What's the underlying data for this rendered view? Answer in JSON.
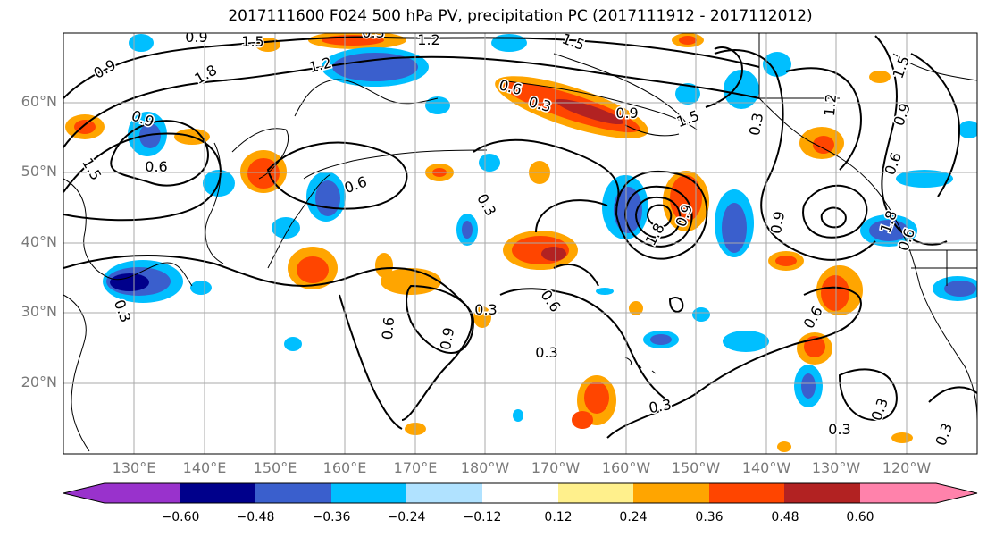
{
  "title": "2017111600 F024 500 hPa PV, precipitation PC (2017111912 - 2017112012)",
  "lat_labels": [
    "60°N",
    "50°N",
    "40°N",
    "30°N",
    "20°N"
  ],
  "lon_labels": [
    "130°E",
    "140°E",
    "150°E",
    "160°E",
    "170°E",
    "180°W",
    "170°W",
    "160°W",
    "150°W",
    "140°W",
    "130°W",
    "120°W"
  ],
  "colorbar": {
    "tick_labels": [
      "−0.60",
      "−0.48",
      "−0.36",
      "−0.24",
      "−0.12",
      "0.12",
      "0.24",
      "0.36",
      "0.48",
      "0.60"
    ],
    "colors": [
      "#9932cc",
      "#00008b",
      "#3a5fcd",
      "#00bfff",
      "#b0e2ff",
      "#ffffff",
      "#fff08c",
      "#ffa500",
      "#ff4500",
      "#b22222",
      "#ff82ab"
    ]
  },
  "contour_labels": [
    "0.9",
    "1.5",
    "0.3",
    "1.2",
    "1.5",
    "1.8",
    "0.9",
    "1.2",
    "0.9",
    "0.6",
    "1.5",
    "0.6",
    "0.3",
    "0.6",
    "0.3",
    "0.9",
    "1.8",
    "0.3",
    "1.5",
    "1.2",
    "0.9",
    "1.5",
    "0.6",
    "0.9",
    "0.6",
    "0.6",
    "1.8",
    "0.9",
    "0.6",
    "0.3",
    "0.9",
    "0.3",
    "0.3",
    "0.6",
    "0.3",
    "0.3",
    "0.3",
    "0.3"
  ]
}
